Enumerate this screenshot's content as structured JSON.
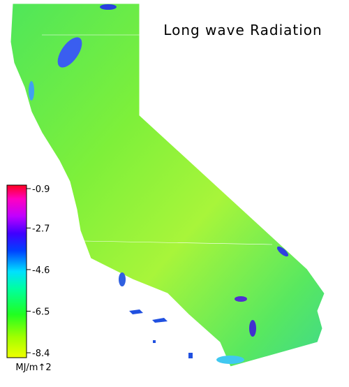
{
  "title": "Long wave Radiation",
  "colorbar": {
    "ticks": [
      -0.9,
      -2.7,
      -4.6,
      -6.5,
      -8.4
    ],
    "unit": "MJ/m↑2"
  }
}
